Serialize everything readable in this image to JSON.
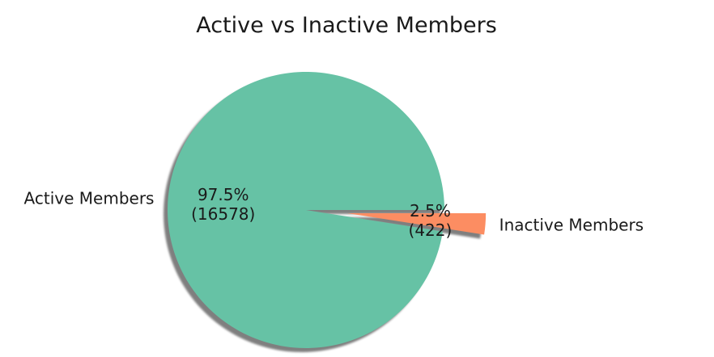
{
  "chart_data": {
    "type": "pie",
    "title": "Active vs Inactive Members",
    "slices": [
      {
        "label": "Active Members",
        "value": 16578,
        "percent_label": "97.5%",
        "count_label": "(16578)",
        "color": "#66c2a5",
        "explode": 0
      },
      {
        "label": "Inactive Members",
        "value": 422,
        "percent_label": "2.5%",
        "count_label": "(422)",
        "color": "#fc8d62",
        "explode": 0.3
      }
    ],
    "start_angle_deg": 0,
    "shadow": true,
    "legend": "none"
  }
}
